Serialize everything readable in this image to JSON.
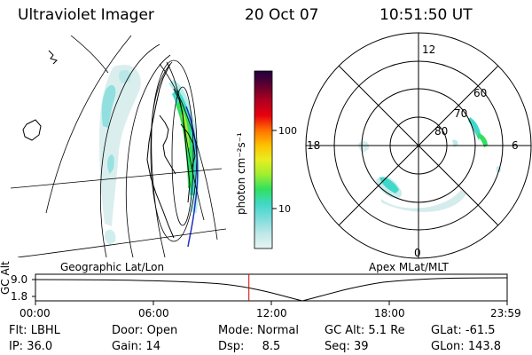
{
  "header": {
    "title": "Ultraviolet Imager",
    "date": "20 Oct 07",
    "time": "10:51:50 UT"
  },
  "geo_panel": {
    "label": "Geographic Lat/Lon",
    "colors": {
      "grid": "#000000",
      "coast": "#000000",
      "oval_blue": "#2030c0"
    }
  },
  "colorbar": {
    "unit": "photon cm⁻²s⁻¹",
    "ticks": [
      "100",
      "10"
    ],
    "stops": [
      "#e8f4f4",
      "#bfe8e8",
      "#7fdcdc",
      "#40d8c8",
      "#30e060",
      "#a0ee30",
      "#e8ee20",
      "#ffc000",
      "#ff7000",
      "#e80010",
      "#b00020",
      "#600030",
      "#200040"
    ]
  },
  "polar_panel": {
    "label": "Apex MLat/MLT",
    "mlt_labels": {
      "top": "12",
      "left": "18",
      "right": "6",
      "bottom": "0"
    },
    "lat_labels": [
      "60",
      "70",
      "80"
    ]
  },
  "timeline": {
    "axis_label": "GC Alt",
    "y_ticks": [
      "9.0",
      "1.8"
    ],
    "x_ticks": [
      "00:00",
      "06:00",
      "12:00",
      "18:00",
      "23:59"
    ],
    "cursor_color": "#cc0000",
    "cursor_time_hours": 10.86
  },
  "info": {
    "row1": [
      {
        "label": "Flt:",
        "value": "LBHL"
      },
      {
        "label": "Door:",
        "value": "Open"
      },
      {
        "label": "Mode:",
        "value": "Normal"
      },
      {
        "label": "GC Alt:",
        "value": "5.1 Re"
      },
      {
        "label": "GLat:",
        "value": "-61.5"
      }
    ],
    "row2": [
      {
        "label": "IP:",
        "value": "36.0"
      },
      {
        "label": "Gain:",
        "value": "14"
      },
      {
        "label": "Dsp:",
        "value": "8.5"
      },
      {
        "label": "Seq:",
        "value": "39"
      },
      {
        "label": "GLon:",
        "value": "143.8"
      }
    ]
  }
}
